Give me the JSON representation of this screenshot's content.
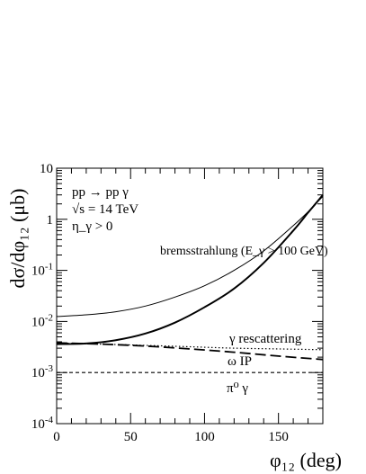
{
  "chart_data": {
    "type": "line",
    "xlabel": "φ₁₂ (deg)",
    "ylabel": "dσ/dφ₁₂ (μb)",
    "xlim": [
      0,
      180
    ],
    "ylim": [
      0.0001,
      10
    ],
    "yscale": "log",
    "grid": false,
    "x_ticks": [
      0,
      50,
      100,
      150
    ],
    "y_ticks": [
      0.0001,
      0.001,
      0.01,
      0.1,
      1,
      10
    ],
    "annotations": {
      "process": "pp → pp γ",
      "energy": "√s = 14 TeV",
      "cut": "η_γ > 0"
    },
    "series": [
      {
        "name": "bremsstrahlung (E_γ > 100 GeV)",
        "style": "thin-solid",
        "x": [
          0,
          20,
          40,
          60,
          80,
          100,
          120,
          140,
          160,
          170,
          175,
          180
        ],
        "y": [
          0.0125,
          0.0135,
          0.0155,
          0.02,
          0.03,
          0.05,
          0.1,
          0.24,
          0.75,
          1.4,
          2.0,
          2.8
        ]
      },
      {
        "name": "",
        "style": "thick-solid",
        "x": [
          0,
          20,
          40,
          60,
          80,
          100,
          120,
          140,
          160,
          170,
          175,
          180
        ],
        "y": [
          0.0036,
          0.0037,
          0.0043,
          0.0058,
          0.0095,
          0.019,
          0.044,
          0.14,
          0.6,
          1.35,
          2.0,
          3.0
        ]
      },
      {
        "name": "γ rescattering",
        "style": "dotted",
        "x": [
          0,
          30,
          60,
          90,
          120,
          150,
          180
        ],
        "y": [
          0.0038,
          0.0036,
          0.0034,
          0.0032,
          0.003,
          0.0029,
          0.0028
        ]
      },
      {
        "name": "ω IP",
        "style": "long-dash",
        "x": [
          0,
          30,
          60,
          90,
          120,
          150,
          180
        ],
        "y": [
          0.0038,
          0.0036,
          0.0033,
          0.0029,
          0.0025,
          0.0021,
          0.0018
        ]
      },
      {
        "name": "π⁰ γ",
        "style": "short-dash",
        "x": [
          0,
          180
        ],
        "y": [
          0.001,
          0.001
        ]
      }
    ]
  }
}
